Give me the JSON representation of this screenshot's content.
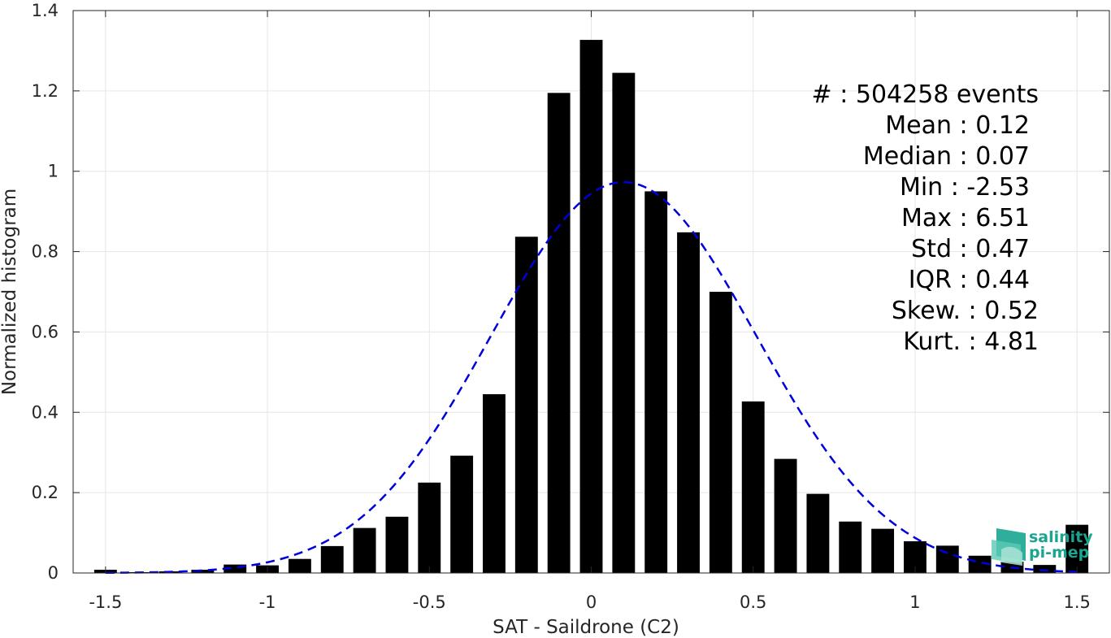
{
  "chart_data": {
    "type": "bar",
    "xlabel": "SAT - Saildrone (C2)",
    "ylabel": "Normalized histogram",
    "xlim": [
      -1.6,
      1.6
    ],
    "ylim": [
      0,
      1.4
    ],
    "xticks": [
      -1.5,
      -1,
      -0.5,
      0,
      0.5,
      1,
      1.5
    ],
    "xtick_labels": [
      "-1.5",
      "-1",
      "-0.5",
      "0",
      "0.5",
      "1",
      "1.5"
    ],
    "yticks": [
      0,
      0.2,
      0.4,
      0.6,
      0.8,
      1,
      1.2,
      1.4
    ],
    "ytick_labels": [
      "0",
      "0.2",
      "0.4",
      "0.6",
      "0.8",
      "1",
      "1.2",
      "1.4"
    ],
    "grid": true,
    "bar_width": 0.07,
    "bar_color": "#000000",
    "bars": {
      "x": [
        -1.5,
        -1.4,
        -1.3,
        -1.2,
        -1.1,
        -1.0,
        -0.9,
        -0.8,
        -0.7,
        -0.6,
        -0.5,
        -0.4,
        -0.3,
        -0.2,
        -0.1,
        0.0,
        0.1,
        0.2,
        0.3,
        0.4,
        0.5,
        0.6,
        0.7,
        0.8,
        0.9,
        1.0,
        1.1,
        1.2,
        1.3,
        1.4,
        1.5
      ],
      "values": [
        0.008,
        0.002,
        0.004,
        0.008,
        0.021,
        0.019,
        0.035,
        0.067,
        0.112,
        0.14,
        0.225,
        0.292,
        0.445,
        0.837,
        1.195,
        1.327,
        1.245,
        0.95,
        0.848,
        0.7,
        0.427,
        0.284,
        0.197,
        0.128,
        0.11,
        0.079,
        0.068,
        0.043,
        0.028,
        0.02,
        0.12
      ]
    },
    "fit": {
      "type": "normal",
      "mean": 0.1,
      "std": 0.41,
      "color": "#0000dd",
      "style": "dashed"
    },
    "stats_lines": [
      "#  : 504258 events",
      "Mean : 0.12",
      "Median : 0.07",
      "Min : -2.53",
      "Max : 6.51",
      "Std : 0.47",
      "IQR : 0.44",
      "Skew. : 0.52",
      "Kurt. : 4.81"
    ]
  },
  "logo": {
    "line1": "salinity",
    "line2": "pi-mep",
    "color": "#1aa591"
  }
}
